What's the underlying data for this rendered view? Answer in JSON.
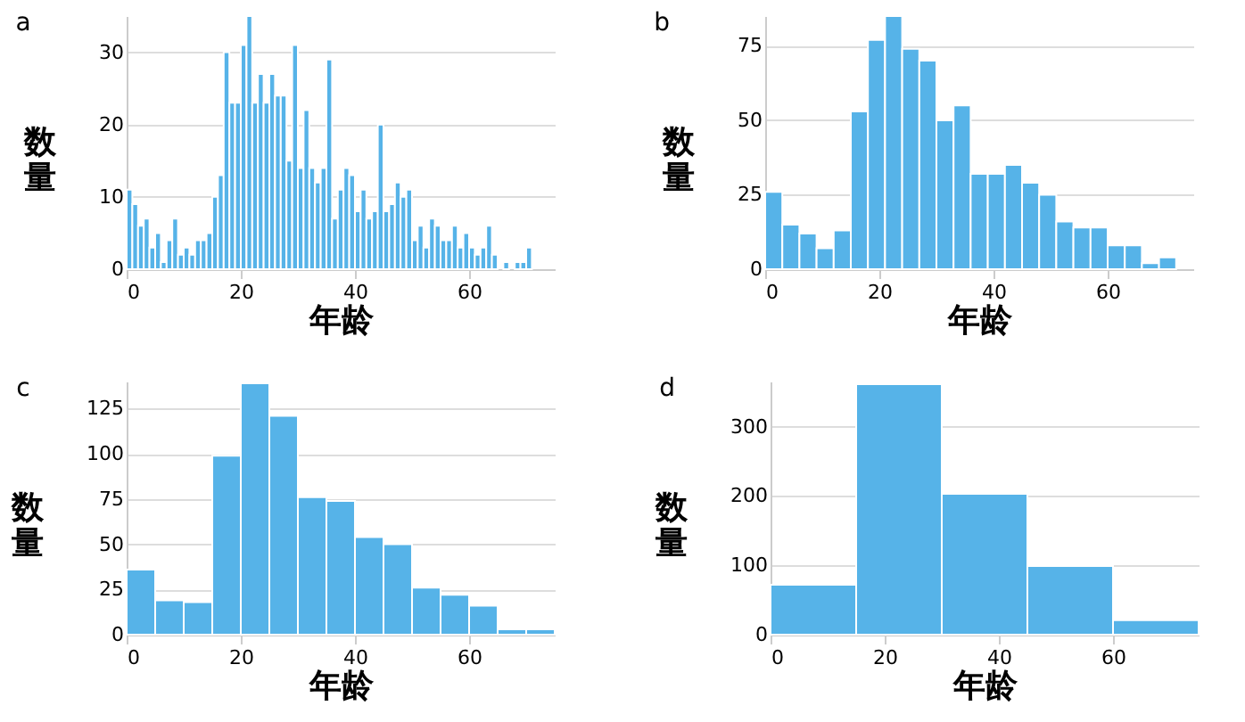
{
  "chart_data": [
    {
      "type": "histogram",
      "annotations": [
        "a"
      ],
      "xlabel": "年龄",
      "ylabel": "数量",
      "color": "#56b3e8",
      "grid": "y",
      "xlim": [
        0,
        75
      ],
      "xticks": [
        0,
        20,
        40,
        60
      ],
      "ylim": [
        0,
        35
      ],
      "yticks": [
        0,
        10,
        20,
        30
      ],
      "bins": [
        0,
        1,
        2,
        3,
        4,
        5,
        6,
        7,
        8,
        9,
        10,
        11,
        12,
        13,
        14,
        15,
        16,
        17,
        18,
        19,
        20,
        21,
        22,
        23,
        24,
        25,
        26,
        27,
        28,
        29,
        30,
        31,
        32,
        33,
        34,
        35,
        36,
        37,
        38,
        39,
        40,
        41,
        42,
        43,
        44,
        45,
        46,
        47,
        48,
        49,
        50,
        51,
        52,
        53,
        54,
        55,
        56,
        57,
        58,
        59,
        60,
        61,
        62,
        63,
        64,
        65,
        66,
        67,
        68,
        69,
        70,
        71
      ],
      "values": [
        11,
        9,
        6,
        7,
        3,
        5,
        1,
        4,
        7,
        2,
        3,
        2,
        4,
        4,
        5,
        10,
        13,
        30,
        23,
        23,
        31,
        35,
        23,
        27,
        23,
        27,
        24,
        24,
        15,
        31,
        14,
        22,
        14,
        12,
        14,
        29,
        7,
        11,
        14,
        13,
        8,
        11,
        7,
        8,
        20,
        8,
        9,
        12,
        10,
        11,
        4,
        6,
        3,
        7,
        6,
        4,
        4,
        6,
        3,
        5,
        3,
        2,
        3,
        6,
        2,
        0,
        1,
        0,
        1,
        1,
        3
      ]
    },
    {
      "type": "histogram",
      "annotations": [
        "b"
      ],
      "xlabel": "年龄",
      "ylabel": "数量",
      "color": "#56b3e8",
      "grid": "y",
      "xlim": [
        0,
        75
      ],
      "xticks": [
        0,
        20,
        40,
        60
      ],
      "ylim": [
        0,
        85
      ],
      "yticks": [
        0,
        25,
        50,
        75
      ],
      "bins": [
        0,
        3,
        6,
        9,
        12,
        15,
        18,
        21,
        24,
        27,
        30,
        33,
        36,
        39,
        42,
        45,
        48,
        51,
        54,
        57,
        60,
        63,
        66,
        69,
        72
      ],
      "values": [
        26,
        15,
        12,
        7,
        13,
        53,
        77,
        85,
        74,
        70,
        50,
        55,
        32,
        32,
        35,
        29,
        25,
        16,
        14,
        14,
        8,
        8,
        2,
        4
      ]
    },
    {
      "type": "histogram",
      "annotations": [
        "c"
      ],
      "xlabel": "年龄",
      "ylabel": "数量",
      "color": "#56b3e8",
      "grid": "y",
      "xlim": [
        0,
        75
      ],
      "xticks": [
        0,
        20,
        40,
        60
      ],
      "ylim": [
        0,
        140
      ],
      "yticks": [
        0,
        25,
        50,
        75,
        100,
        125
      ],
      "bins": [
        0,
        5,
        10,
        15,
        20,
        25,
        30,
        35,
        40,
        45,
        50,
        55,
        60,
        65,
        70,
        75
      ],
      "values": [
        36,
        19,
        18,
        99,
        139,
        121,
        76,
        74,
        54,
        50,
        26,
        22,
        16,
        3,
        3
      ]
    },
    {
      "type": "histogram",
      "annotations": [
        "d"
      ],
      "xlabel": "年龄",
      "ylabel": "数量",
      "color": "#56b3e8",
      "grid": "y",
      "xlim": [
        0,
        75
      ],
      "xticks": [
        0,
        20,
        40,
        60
      ],
      "ylim": [
        0,
        365
      ],
      "yticks": [
        0,
        100,
        200,
        300
      ],
      "bins": [
        0,
        15,
        30,
        45,
        60,
        75
      ],
      "values": [
        72,
        361,
        203,
        99,
        21
      ]
    }
  ]
}
